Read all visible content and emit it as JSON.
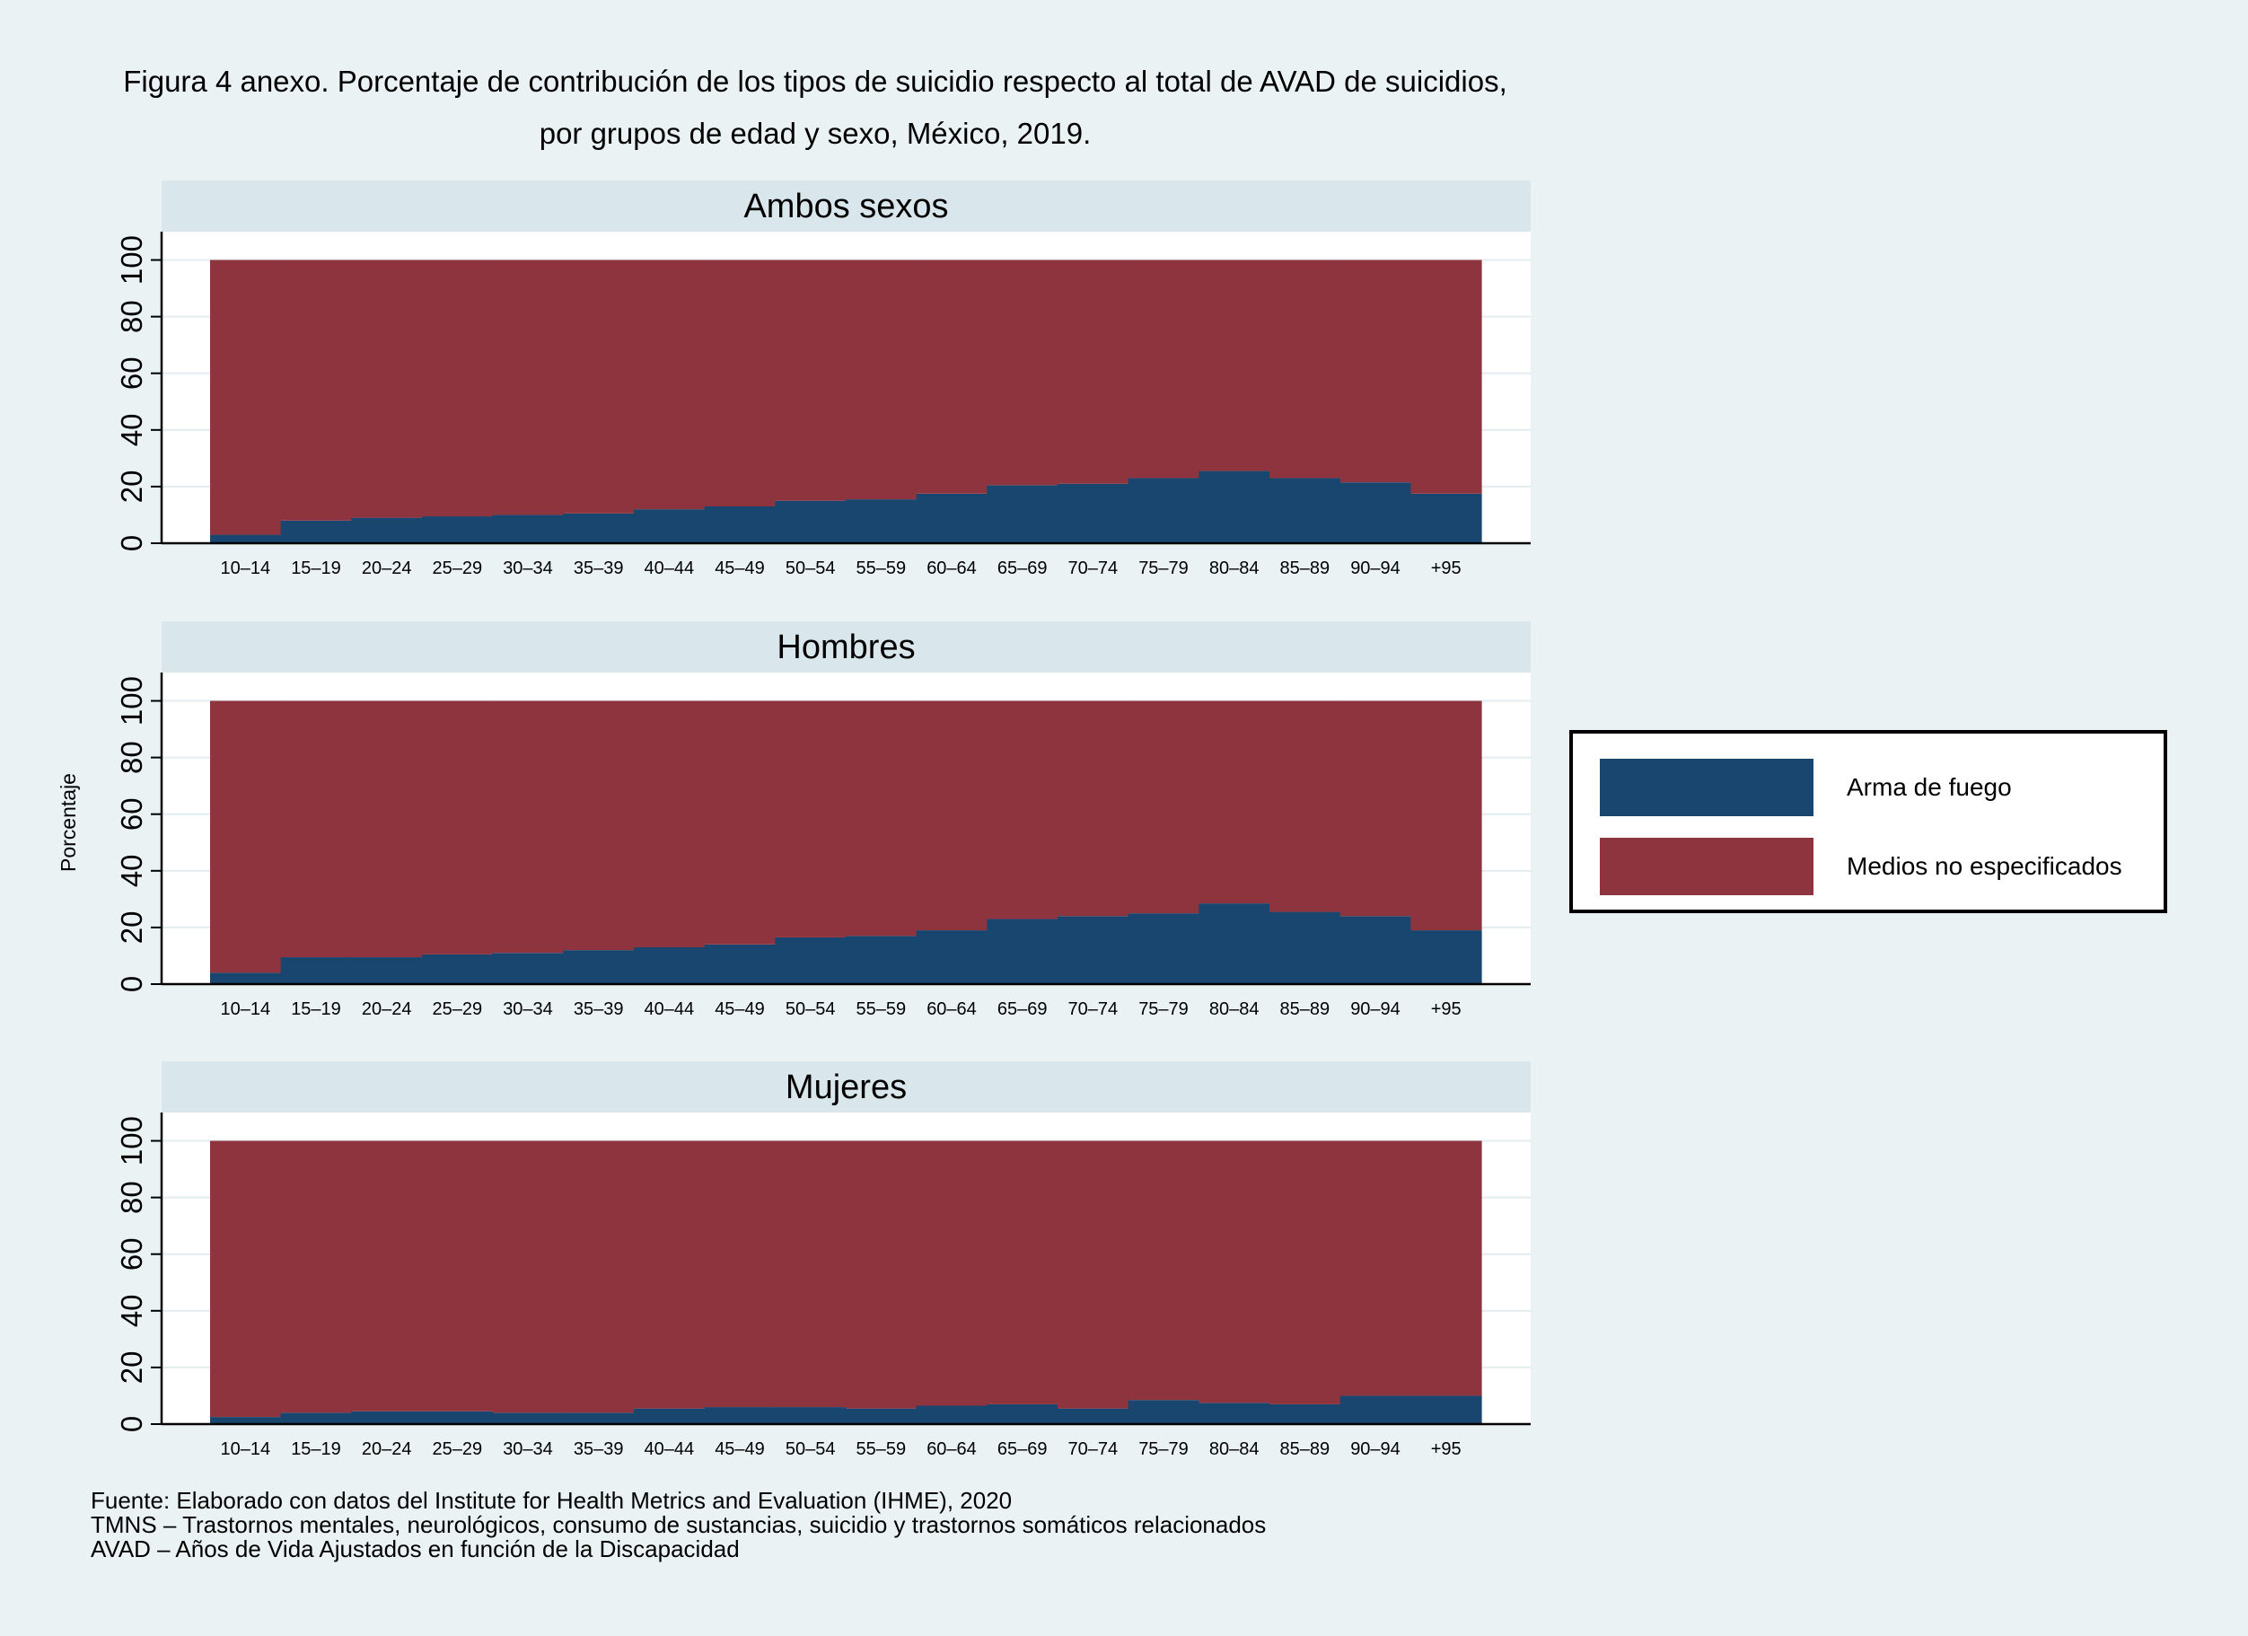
{
  "title": {
    "line1": "Figura 4 anexo. Porcentaje de contribución de los tipos de suicidio respecto al total de AVAD de suicidios,",
    "line2": "por grupos de edad y sexo, México, 2019."
  },
  "ylabel": "Porcentaje",
  "colors": {
    "arma_de_fuego": "#18466e",
    "medios_no_especificados": "#8d343f",
    "panel_header": "#d9e6ec",
    "background": "#eaf2f3"
  },
  "legend": {
    "placement": "right",
    "items": [
      "Arma de fuego",
      "Medios no especificados"
    ]
  },
  "chart_data": [
    {
      "type": "area",
      "stacked": true,
      "title": "Ambos sexos",
      "categories": [
        "10–14",
        "15–19",
        "20–24",
        "25–29",
        "30–34",
        "35–39",
        "40–44",
        "45–49",
        "50–54",
        "55–59",
        "60–64",
        "65–69",
        "70–74",
        "75–79",
        "80–84",
        "85–89",
        "90–94",
        "+95"
      ],
      "yticks": [
        "0",
        "20",
        "40",
        "60",
        "80",
        "100"
      ],
      "ylim": [
        0,
        110
      ],
      "grid": true,
      "series": [
        {
          "name": "Arma de fuego",
          "values": [
            3,
            8,
            9,
            9.5,
            10,
            10.5,
            12,
            13,
            15,
            15.5,
            17.5,
            20.5,
            21,
            23,
            25.5,
            23,
            21.5,
            17.5
          ]
        },
        {
          "name": "Medios no especificados",
          "values": [
            97,
            92,
            91,
            90.5,
            90,
            89.5,
            88,
            87,
            85,
            84.5,
            82.5,
            79.5,
            79,
            77,
            74.5,
            77,
            78.5,
            82.5
          ]
        }
      ]
    },
    {
      "type": "area",
      "stacked": true,
      "title": "Hombres",
      "categories": [
        "10–14",
        "15–19",
        "20–24",
        "25–29",
        "30–34",
        "35–39",
        "40–44",
        "45–49",
        "50–54",
        "55–59",
        "60–64",
        "65–69",
        "70–74",
        "75–79",
        "80–84",
        "85–89",
        "90–94",
        "+95"
      ],
      "yticks": [
        "0",
        "20",
        "40",
        "60",
        "80",
        "100"
      ],
      "ylim": [
        0,
        110
      ],
      "grid": true,
      "series": [
        {
          "name": "Arma de fuego",
          "values": [
            4,
            9.5,
            9.5,
            10.5,
            11,
            12,
            13,
            14,
            16.5,
            17,
            19,
            23,
            24,
            25,
            28.5,
            25.5,
            24,
            19
          ]
        },
        {
          "name": "Medios no especificados",
          "values": [
            96,
            90.5,
            90.5,
            89.5,
            89,
            88,
            87,
            86,
            83.5,
            83,
            81,
            77,
            76,
            75,
            71.5,
            74.5,
            76,
            81
          ]
        }
      ]
    },
    {
      "type": "area",
      "stacked": true,
      "title": "Mujeres",
      "categories": [
        "10–14",
        "15–19",
        "20–24",
        "25–29",
        "30–34",
        "35–39",
        "40–44",
        "45–49",
        "50–54",
        "55–59",
        "60–64",
        "65–69",
        "70–74",
        "75–79",
        "80–84",
        "85–89",
        "90–94",
        "+95"
      ],
      "yticks": [
        "0",
        "20",
        "40",
        "60",
        "80",
        "100"
      ],
      "ylim": [
        0,
        110
      ],
      "grid": true,
      "series": [
        {
          "name": "Arma de fuego",
          "values": [
            2.5,
            4,
            4.5,
            4.5,
            4,
            4,
            5.5,
            6,
            6,
            5.5,
            6.5,
            7,
            5.5,
            8.5,
            7.5,
            7,
            10,
            10
          ]
        },
        {
          "name": "Medios no especificados",
          "values": [
            97.5,
            96,
            95.5,
            95.5,
            96,
            96,
            94.5,
            94,
            94,
            94.5,
            93.5,
            93,
            94.5,
            91.5,
            92.5,
            93,
            90,
            90
          ]
        }
      ]
    }
  ],
  "notes": [
    "Fuente: Elaborado con datos del Institute for Health Metrics and Evaluation (IHME), 2020",
    "TMNS – Trastornos mentales, neurológicos, consumo de sustancias, suicidio y trastornos somáticos relacionados",
    "AVAD – Años de Vida Ajustados en función de la Discapacidad"
  ]
}
